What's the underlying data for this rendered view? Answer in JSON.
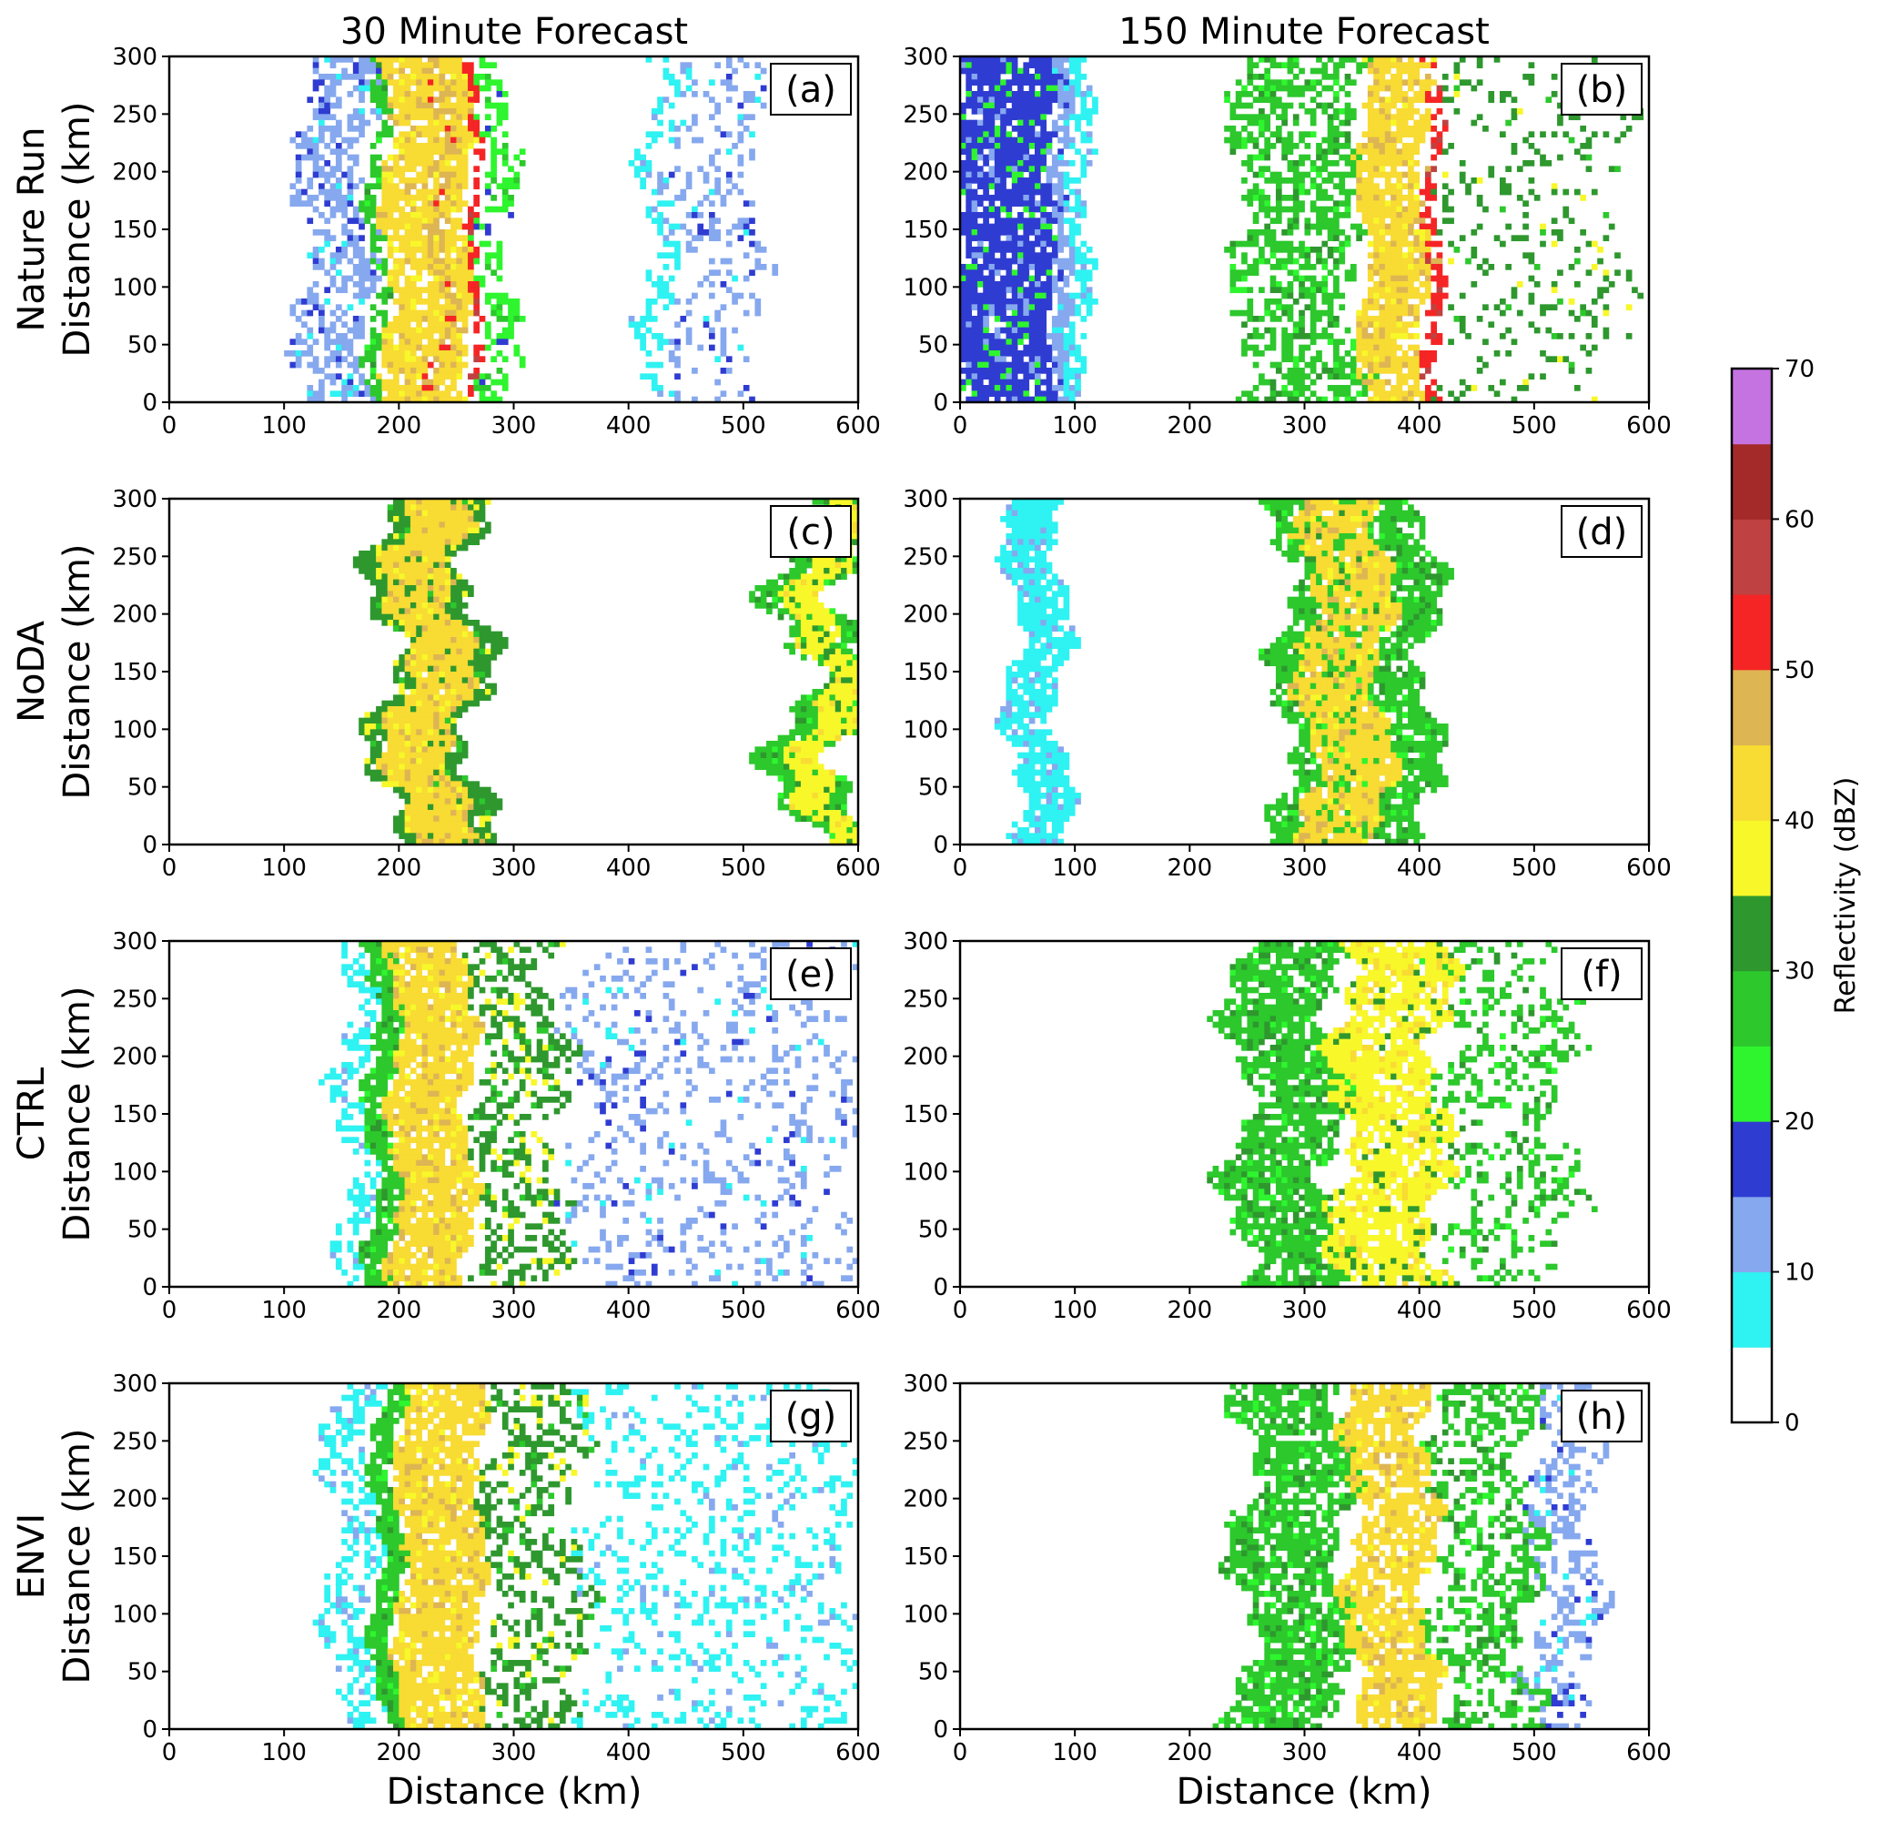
{
  "figure": {
    "column_titles": [
      "30 Minute Forecast",
      "150 Minute Forecast"
    ],
    "row_labels": [
      "Nature Run",
      "NoDA",
      "CTRL",
      "ENVI"
    ],
    "ylabel": "Distance (km)",
    "xlabel": "Distance (km)",
    "colorbar_label": "Reflectivity (dBZ)"
  },
  "chart_data": {
    "type": "heatmap",
    "x_range": [
      0,
      600
    ],
    "y_range": [
      0,
      300
    ],
    "xticks": [
      0,
      100,
      200,
      300,
      400,
      500,
      600
    ],
    "yticks": [
      0,
      50,
      100,
      150,
      200,
      250,
      300
    ],
    "grid": false,
    "colorbar": {
      "label": "Reflectivity (dBZ)",
      "ticks": [
        0,
        10,
        20,
        30,
        40,
        50,
        60,
        70
      ],
      "levels": [
        {
          "from": 0,
          "to": 5,
          "color": "#ffffff"
        },
        {
          "from": 5,
          "to": 10,
          "color": "#2ff2f2"
        },
        {
          "from": 10,
          "to": 15,
          "color": "#86a8ee"
        },
        {
          "from": 15,
          "to": 20,
          "color": "#2f3cd2"
        },
        {
          "from": 20,
          "to": 25,
          "color": "#2ef52e"
        },
        {
          "from": 25,
          "to": 30,
          "color": "#2cc82c"
        },
        {
          "from": 30,
          "to": 35,
          "color": "#2e982e"
        },
        {
          "from": 35,
          "to": 40,
          "color": "#f7f72a"
        },
        {
          "from": 40,
          "to": 45,
          "color": "#f8db33"
        },
        {
          "from": 45,
          "to": 50,
          "color": "#deb553"
        },
        {
          "from": 50,
          "to": 55,
          "color": "#f52525"
        },
        {
          "from": 55,
          "to": 60,
          "color": "#c04141"
        },
        {
          "from": 60,
          "to": 65,
          "color": "#a42a2a"
        },
        {
          "from": 65,
          "to": 70,
          "color": "#c673e2"
        }
      ]
    },
    "panels": [
      {
        "id": "(a)",
        "row": "Nature Run",
        "forecast": "30 Minute Forecast",
        "bands": [
          {
            "x0": 115,
            "x1": 175,
            "level": 2,
            "wob": 10,
            "speck": 0.45
          },
          {
            "x0": 175,
            "x1": 188,
            "level": 5,
            "wob": 6,
            "speck": 0.25
          },
          {
            "x0": 188,
            "x1": 262,
            "level": 8,
            "wob": 6,
            "speck": 0.15
          },
          {
            "x0": 230,
            "x1": 245,
            "level": 9,
            "wob": 8,
            "speck": 0.5
          },
          {
            "x0": 262,
            "x1": 270,
            "level": 10,
            "wob": 4,
            "speck": 0.35
          },
          {
            "x0": 270,
            "x1": 300,
            "level": 4,
            "wob": 8,
            "speck": 0.55
          },
          {
            "x0": 415,
            "x1": 440,
            "level": 1,
            "wob": 10,
            "speck": 0.55
          },
          {
            "x0": 440,
            "x1": 515,
            "level": 2,
            "wob": 12,
            "speck": 0.75
          }
        ]
      },
      {
        "id": "(b)",
        "row": "Nature Run",
        "forecast": "150 Minute Forecast",
        "bands": [
          {
            "x0": 0,
            "x1": 80,
            "level": 3,
            "wob": 4,
            "speck": 0.1
          },
          {
            "x0": 80,
            "x1": 95,
            "level": 2,
            "wob": 4,
            "speck": 0.15
          },
          {
            "x0": 95,
            "x1": 112,
            "level": 1,
            "wob": 6,
            "speck": 0.3
          },
          {
            "x0": 240,
            "x1": 350,
            "level": 5,
            "wob": 10,
            "speck": 0.45
          },
          {
            "x0": 350,
            "x1": 405,
            "level": 8,
            "wob": 6,
            "speck": 0.15
          },
          {
            "x0": 405,
            "x1": 418,
            "level": 10,
            "wob": 5,
            "speck": 0.4
          },
          {
            "x0": 418,
            "x1": 580,
            "level": 6,
            "wob": 15,
            "speck": 0.85
          }
        ]
      },
      {
        "id": "(c)",
        "row": "NoDA",
        "forecast": "30 Minute Forecast",
        "bands": [
          {
            "x0": 185,
            "x1": 270,
            "level": 6,
            "wob": 18,
            "speck": 0.05
          },
          {
            "x0": 198,
            "x1": 255,
            "level": 8,
            "wob": 14,
            "speck": 0.05
          },
          {
            "x0": 540,
            "x1": 600,
            "level": 5,
            "wob": 25,
            "speck": 0.1
          },
          {
            "x0": 555,
            "x1": 590,
            "level": 7,
            "wob": 18,
            "speck": 0.1
          }
        ]
      },
      {
        "id": "(d)",
        "row": "NoDA",
        "forecast": "150 Minute Forecast",
        "bands": [
          {
            "x0": 45,
            "x1": 90,
            "level": 1,
            "wob": 10,
            "speck": 0.1
          },
          {
            "x0": 280,
            "x1": 410,
            "level": 5,
            "wob": 14,
            "speck": 0.15
          },
          {
            "x0": 300,
            "x1": 370,
            "level": 8,
            "wob": 12,
            "speck": 0.2
          }
        ]
      },
      {
        "id": "(e)",
        "row": "CTRL",
        "forecast": "30 Minute Forecast",
        "bands": [
          {
            "x0": 150,
            "x1": 175,
            "level": 1,
            "wob": 12,
            "speck": 0.5
          },
          {
            "x0": 175,
            "x1": 200,
            "level": 5,
            "wob": 8,
            "speck": 0.1
          },
          {
            "x0": 195,
            "x1": 262,
            "level": 8,
            "wob": 8,
            "speck": 0.1
          },
          {
            "x0": 262,
            "x1": 340,
            "level": 6,
            "wob": 14,
            "speck": 0.55
          },
          {
            "x0": 350,
            "x1": 600,
            "level": 2,
            "wob": 20,
            "speck": 0.8
          }
        ]
      },
      {
        "id": "(f)",
        "row": "CTRL",
        "forecast": "150 Minute Forecast",
        "bands": [
          {
            "x0": 240,
            "x1": 330,
            "level": 5,
            "wob": 16,
            "speck": 0.2
          },
          {
            "x0": 330,
            "x1": 420,
            "level": 7,
            "wob": 14,
            "speck": 0.2
          },
          {
            "x0": 420,
            "x1": 530,
            "level": 5,
            "wob": 18,
            "speck": 0.7
          }
        ]
      },
      {
        "id": "(g)",
        "row": "ENVI",
        "forecast": "30 Minute Forecast",
        "bands": [
          {
            "x0": 140,
            "x1": 180,
            "level": 1,
            "wob": 12,
            "speck": 0.5
          },
          {
            "x0": 180,
            "x1": 200,
            "level": 5,
            "wob": 8,
            "speck": 0.1
          },
          {
            "x0": 200,
            "x1": 272,
            "level": 8,
            "wob": 6,
            "speck": 0.12
          },
          {
            "x0": 272,
            "x1": 360,
            "level": 6,
            "wob": 14,
            "speck": 0.6
          },
          {
            "x0": 360,
            "x1": 600,
            "level": 1,
            "wob": 20,
            "speck": 0.75
          }
        ]
      },
      {
        "id": "(h)",
        "row": "ENVI",
        "forecast": "150 Minute Forecast",
        "bands": [
          {
            "x0": 245,
            "x1": 340,
            "level": 5,
            "wob": 16,
            "speck": 0.25
          },
          {
            "x0": 340,
            "x1": 410,
            "level": 8,
            "wob": 10,
            "speck": 0.2
          },
          {
            "x0": 410,
            "x1": 500,
            "level": 5,
            "wob": 14,
            "speck": 0.55
          },
          {
            "x0": 500,
            "x1": 555,
            "level": 2,
            "wob": 12,
            "speck": 0.6
          }
        ]
      }
    ]
  }
}
